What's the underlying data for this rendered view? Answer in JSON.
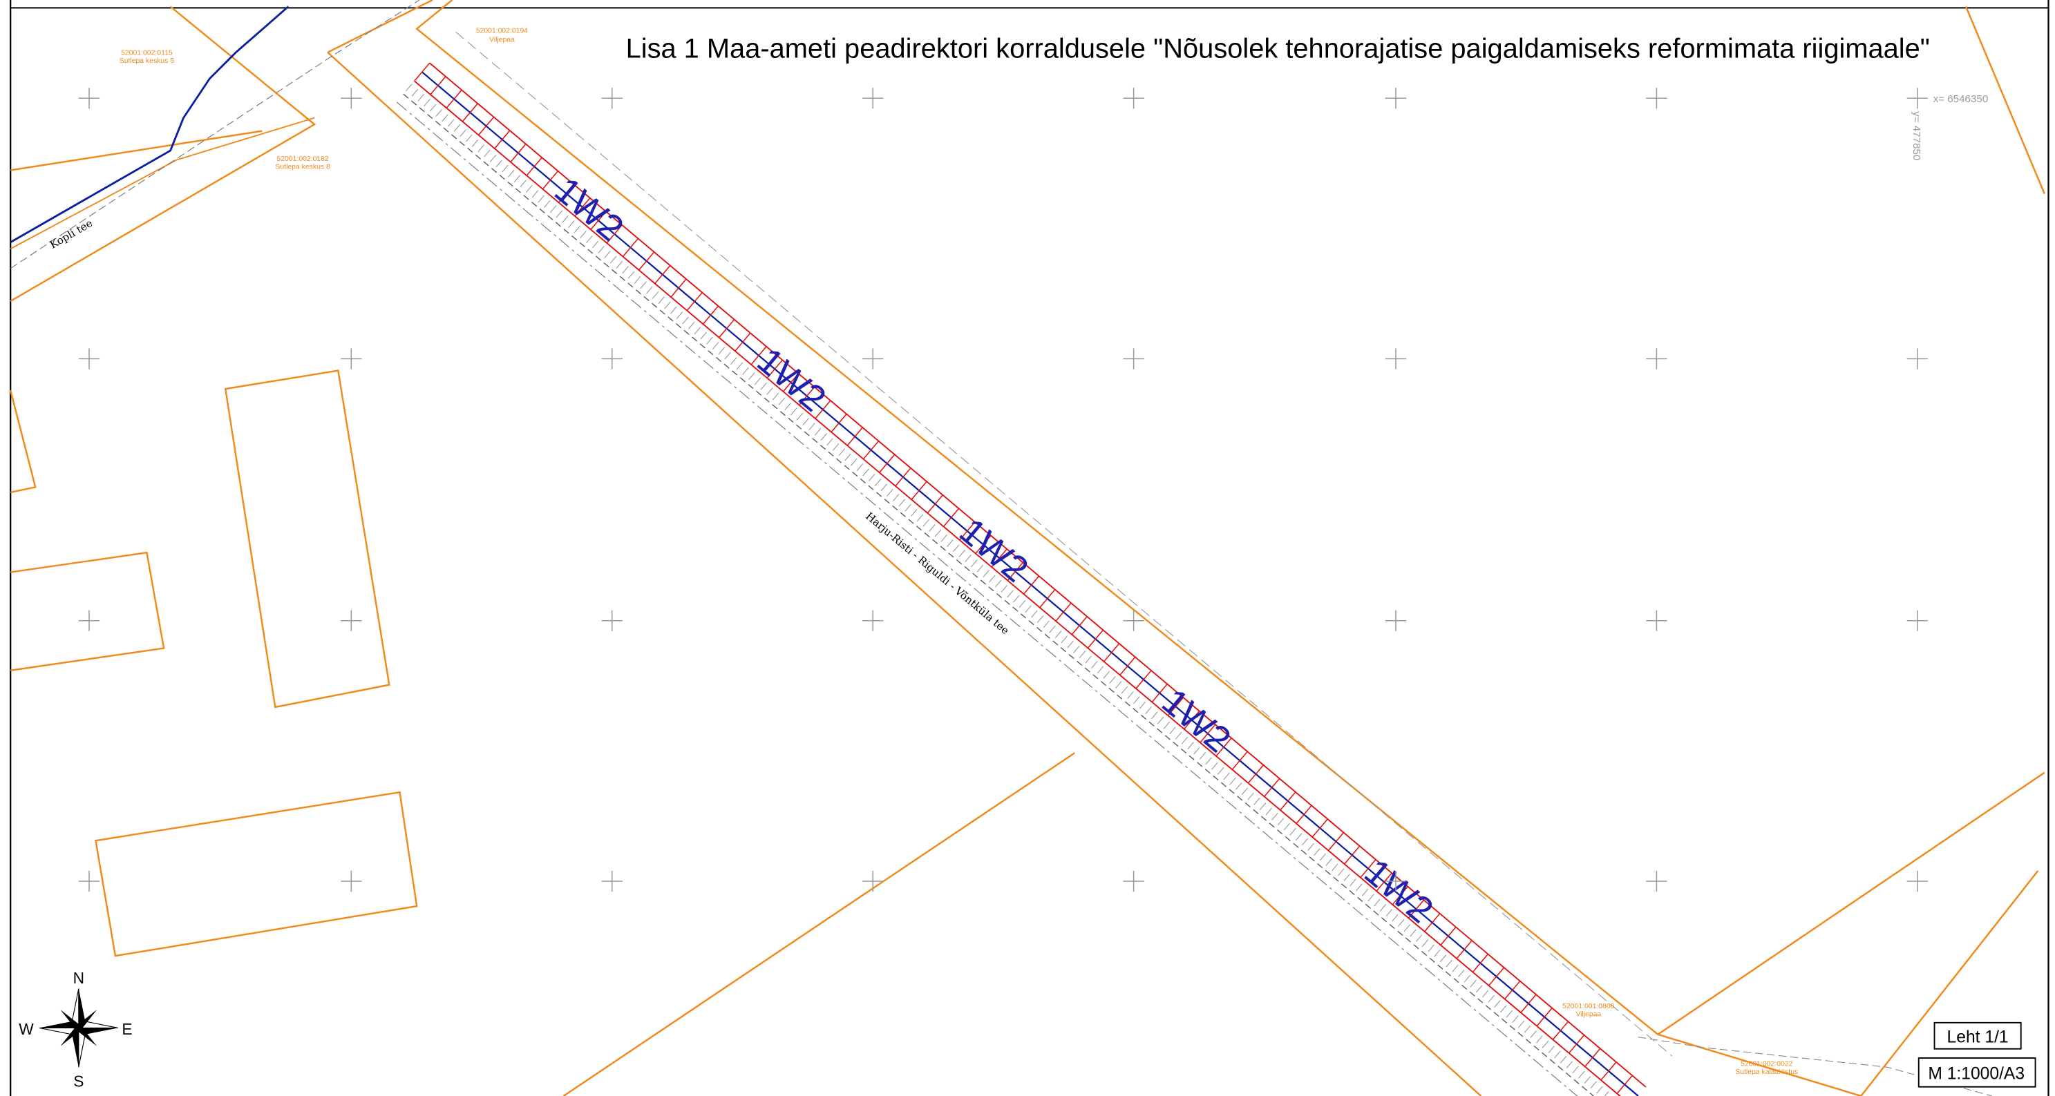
{
  "title": "Lisa 1 Maa-ameti peadirektori korraldusele \"Nõusolek tehnorajatise paigaldamiseks reformimata riigimaale\"",
  "sheet": "Leht 1/1",
  "scale": "M 1:1000/A3",
  "compass": {
    "n": "N",
    "e": "E",
    "s": "S",
    "w": "W"
  },
  "coordinates": {
    "x": "x= 6546350",
    "y": "y= 477850"
  },
  "roads": {
    "main": "Harju-Risti - Riguldi - Võntküla tee",
    "side": "Kopli tee"
  },
  "line_labels": [
    "1W2",
    "1W2",
    "1W2",
    "1W2",
    "1W2"
  ],
  "parcels": [
    {
      "id": "52001:002:0194",
      "name": "Viljepaa"
    },
    {
      "id": "52001:002:0115",
      "name": "Sutlepa keskus 5"
    },
    {
      "id": "52001:002:0182",
      "name": "Sutlepa keskus 8"
    },
    {
      "id": "52001:001:0806",
      "name": "Viljepaa"
    },
    {
      "id": "52001:002:0022",
      "name": "Sutlepa kalatööstus"
    }
  ]
}
